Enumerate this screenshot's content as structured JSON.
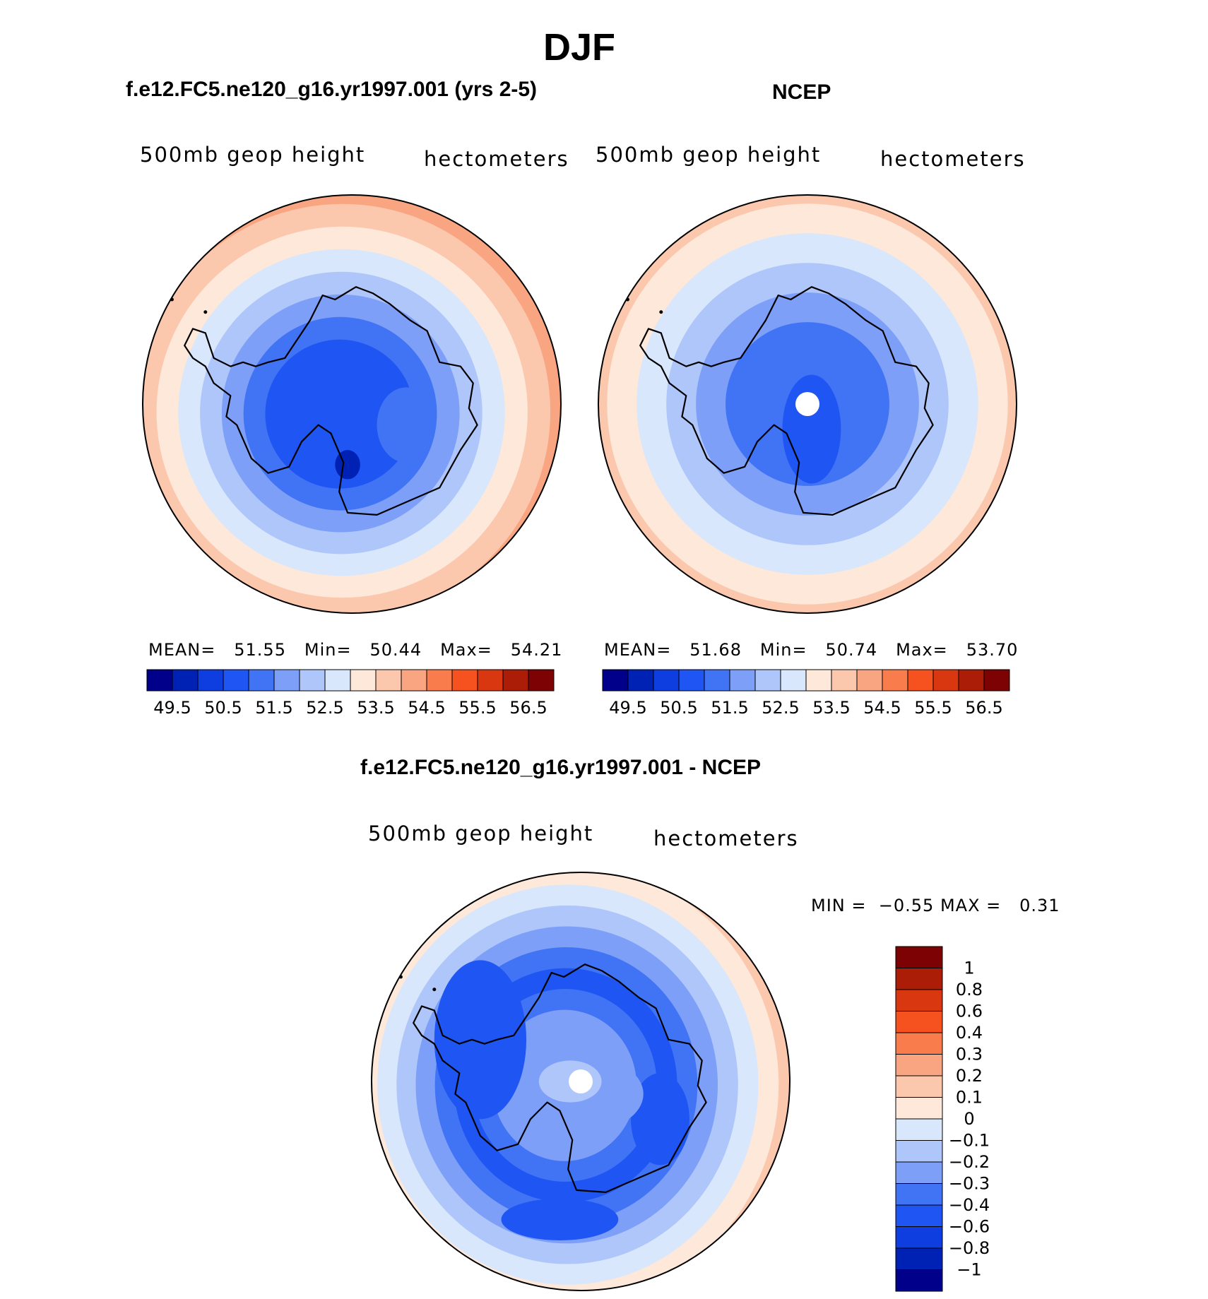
{
  "title": "DJF",
  "panels": [
    {
      "title": "f.e12.FC5.ne120_g16.yr1997.001 (yrs 2-5)",
      "variable": "500mb geop height",
      "units": "hectometers",
      "mean_label": "MEAN=",
      "mean": "51.55",
      "min_label": "Min=",
      "min": "50.44",
      "max_label": "Max=",
      "max": "54.21"
    },
    {
      "title": "NCEP",
      "variable": "500mb geop height",
      "units": "hectometers",
      "mean_label": "MEAN=",
      "mean": "51.68",
      "min_label": "Min=",
      "min": "50.74",
      "max_label": "Max=",
      "max": "53.70"
    },
    {
      "title": "f.e12.FC5.ne120_g16.yr1997.001 - NCEP",
      "variable": "500mb geop height",
      "units": "hectometers",
      "min_label": "MIN =",
      "min": "−0.55",
      "max_label": "MAX =",
      "max": "0.31"
    }
  ],
  "chart_data": [
    {
      "type": "heatmap",
      "projection": "south-polar stereographic",
      "title": "f.e12.FC5.ne120_g16.yr1997.001 (yrs 2-5)",
      "field": "500mb geop height",
      "units": "hectometers",
      "mean": 51.55,
      "min": 50.44,
      "max": 54.21,
      "rings_center_to_edge": [
        50.5,
        51.0,
        51.5,
        52.0,
        52.5,
        53.0,
        53.5,
        54.0
      ],
      "colorbar": {
        "orientation": "horizontal",
        "levels": [
          49.5,
          50,
          50.5,
          51,
          51.5,
          52,
          52.5,
          53,
          53.5,
          54,
          54.5,
          55,
          55.5,
          56,
          56.5
        ],
        "tick_labels": [
          "49.5",
          "50.5",
          "51.5",
          "52.5",
          "53.5",
          "54.5",
          "55.5",
          "56.5"
        ],
        "colors": [
          "#00008a",
          "#0022b4",
          "#0f3ee0",
          "#1f55f2",
          "#4173f5",
          "#7d9ff8",
          "#aec6fa",
          "#d8e7fc",
          "#fde8da",
          "#fbc8ae",
          "#f9a581",
          "#f97c4c",
          "#f5521f",
          "#d83710",
          "#ab1d07",
          "#7d0203"
        ]
      }
    },
    {
      "type": "heatmap",
      "projection": "south-polar stereographic",
      "title": "NCEP",
      "field": "500mb geop height",
      "units": "hectometers",
      "mean": 51.68,
      "min": 50.74,
      "max": 53.7,
      "rings_center_to_edge": [
        51.0,
        51.5,
        52.0,
        52.5,
        53.0,
        53.5
      ],
      "colorbar": {
        "orientation": "horizontal",
        "levels": [
          49.5,
          50,
          50.5,
          51,
          51.5,
          52,
          52.5,
          53,
          53.5,
          54,
          54.5,
          55,
          55.5,
          56,
          56.5
        ],
        "tick_labels": [
          "49.5",
          "50.5",
          "51.5",
          "52.5",
          "53.5",
          "54.5",
          "55.5",
          "56.5"
        ],
        "colors": [
          "#00008a",
          "#0022b4",
          "#0f3ee0",
          "#1f55f2",
          "#4173f5",
          "#7d9ff8",
          "#aec6fa",
          "#d8e7fc",
          "#fde8da",
          "#fbc8ae",
          "#f9a581",
          "#f97c4c",
          "#f5521f",
          "#d83710",
          "#ab1d07",
          "#7d0203"
        ]
      }
    },
    {
      "type": "heatmap",
      "projection": "south-polar stereographic",
      "title": "f.e12.FC5.ne120_g16.yr1997.001 - NCEP",
      "field": "500mb geop height",
      "units": "hectometers",
      "min": -0.55,
      "max": 0.31,
      "rings_center_to_edge": [
        -0.3,
        -0.4,
        -0.6,
        -0.4,
        -0.3,
        -0.2,
        -0.1,
        0,
        0.1
      ],
      "colorbar": {
        "orientation": "vertical",
        "levels": [
          1,
          0.8,
          0.6,
          0.4,
          0.3,
          0.2,
          0.1,
          0,
          -0.1,
          -0.2,
          -0.3,
          -0.4,
          -0.6,
          -0.8,
          -1
        ],
        "tick_labels": [
          "1",
          "0.8",
          "0.6",
          "0.4",
          "0.3",
          "0.2",
          "0.1",
          "0",
          "−0.1",
          "−0.2",
          "−0.3",
          "−0.4",
          "−0.6",
          "−0.8",
          "−1"
        ],
        "colors_top_to_bottom": [
          "#7d0203",
          "#ab1d07",
          "#d83710",
          "#f5521f",
          "#f97c4c",
          "#f9a581",
          "#fbc8ae",
          "#fde8da",
          "#d8e7fc",
          "#aec6fa",
          "#7d9ff8",
          "#4173f5",
          "#1f55f2",
          "#0f3ee0",
          "#0022b4",
          "#00008a"
        ]
      }
    }
  ]
}
